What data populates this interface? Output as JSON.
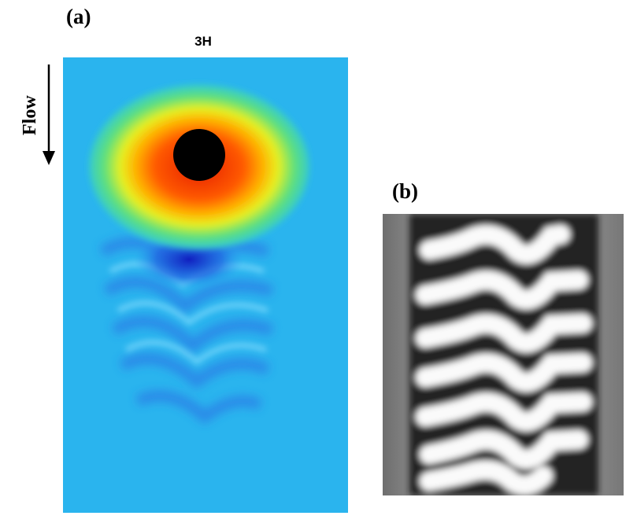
{
  "panels": [
    {
      "label": "(a)",
      "title": "3H",
      "annotation": "Flow"
    },
    {
      "label": "(b)"
    }
  ]
}
